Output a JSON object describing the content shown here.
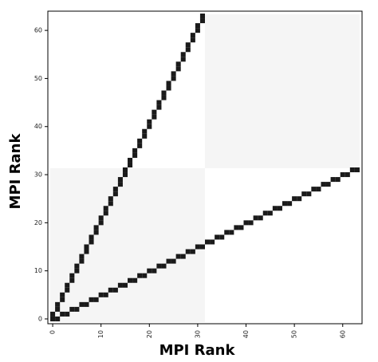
{
  "chart_data": {
    "type": "heatmap",
    "xlabel": "MPI Rank",
    "ylabel": "MPI Rank",
    "color": "#1a1a1a",
    "xlim": [
      -1,
      64
    ],
    "ylim": [
      -1,
      64
    ],
    "xticks": [
      0,
      10,
      20,
      30,
      40,
      50,
      60
    ],
    "yticks": [
      0,
      10,
      20,
      30,
      40,
      50,
      60
    ],
    "x": [
      0,
      0,
      1,
      1,
      2,
      2,
      3,
      3,
      4,
      4,
      5,
      5,
      6,
      6,
      7,
      7,
      8,
      8,
      9,
      9,
      10,
      10,
      11,
      11,
      12,
      12,
      13,
      13,
      14,
      14,
      15,
      15,
      16,
      16,
      17,
      17,
      18,
      18,
      19,
      19,
      20,
      20,
      21,
      21,
      22,
      22,
      23,
      23,
      24,
      24,
      25,
      25,
      26,
      26,
      27,
      27,
      28,
      28,
      29,
      29,
      30,
      30,
      31,
      31,
      1,
      2,
      3,
      4,
      5,
      6,
      7,
      8,
      9,
      10,
      11,
      12,
      13,
      14,
      15,
      16,
      17,
      18,
      19,
      20,
      21,
      22,
      23,
      24,
      25,
      26,
      27,
      28,
      29,
      30,
      31,
      32,
      33,
      34,
      35,
      36,
      37,
      38,
      39,
      40,
      41,
      42,
      43,
      44,
      45,
      46,
      47,
      48,
      49,
      50,
      51,
      52,
      53,
      54,
      55,
      56,
      57,
      58,
      59,
      60,
      61,
      62,
      63
    ],
    "y": [
      0,
      1,
      2,
      3,
      4,
      5,
      6,
      7,
      8,
      9,
      10,
      11,
      12,
      13,
      14,
      15,
      16,
      17,
      18,
      19,
      20,
      21,
      22,
      23,
      24,
      25,
      26,
      27,
      28,
      29,
      30,
      31,
      32,
      33,
      34,
      35,
      36,
      37,
      38,
      39,
      40,
      41,
      42,
      43,
      44,
      45,
      46,
      47,
      48,
      49,
      50,
      51,
      52,
      53,
      54,
      55,
      56,
      57,
      58,
      59,
      60,
      61,
      62,
      63,
      0,
      1,
      1,
      2,
      2,
      3,
      3,
      4,
      4,
      5,
      5,
      6,
      6,
      7,
      7,
      8,
      8,
      9,
      9,
      10,
      10,
      11,
      11,
      12,
      12,
      13,
      13,
      14,
      14,
      15,
      15,
      16,
      16,
      17,
      17,
      18,
      18,
      19,
      19,
      20,
      20,
      21,
      21,
      22,
      22,
      23,
      23,
      24,
      24,
      25,
      25,
      26,
      26,
      27,
      27,
      28,
      28,
      29,
      29,
      30,
      30,
      31,
      31
    ]
  }
}
